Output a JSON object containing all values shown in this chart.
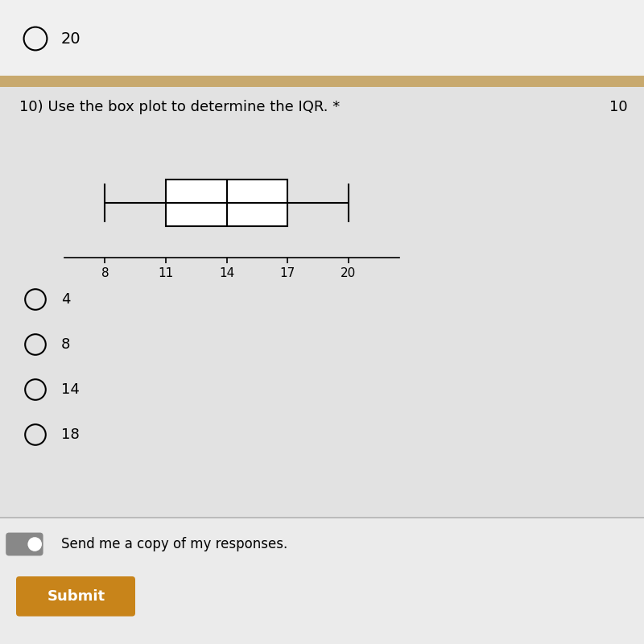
{
  "title": "10) Use the box plot to determine the IQR. *",
  "points_label": "10",
  "q1": 11,
  "median": 14,
  "q3": 17,
  "whisker_min": 8,
  "whisker_max": 20,
  "tick_values": [
    8,
    11,
    14,
    17,
    20
  ],
  "options": [
    "4",
    "8",
    "14",
    "18"
  ],
  "prev_option": "20",
  "background_color": "#e8e8e8",
  "question_bg": "#dcdcdc",
  "box_facecolor": "white",
  "box_edgecolor": "black",
  "separator_color": "#c8a96e",
  "submit_bg": "#c8841a",
  "submit_text_color": "white",
  "send_copy_text": "Send me a copy of my responses.",
  "submit_text": "Submit"
}
